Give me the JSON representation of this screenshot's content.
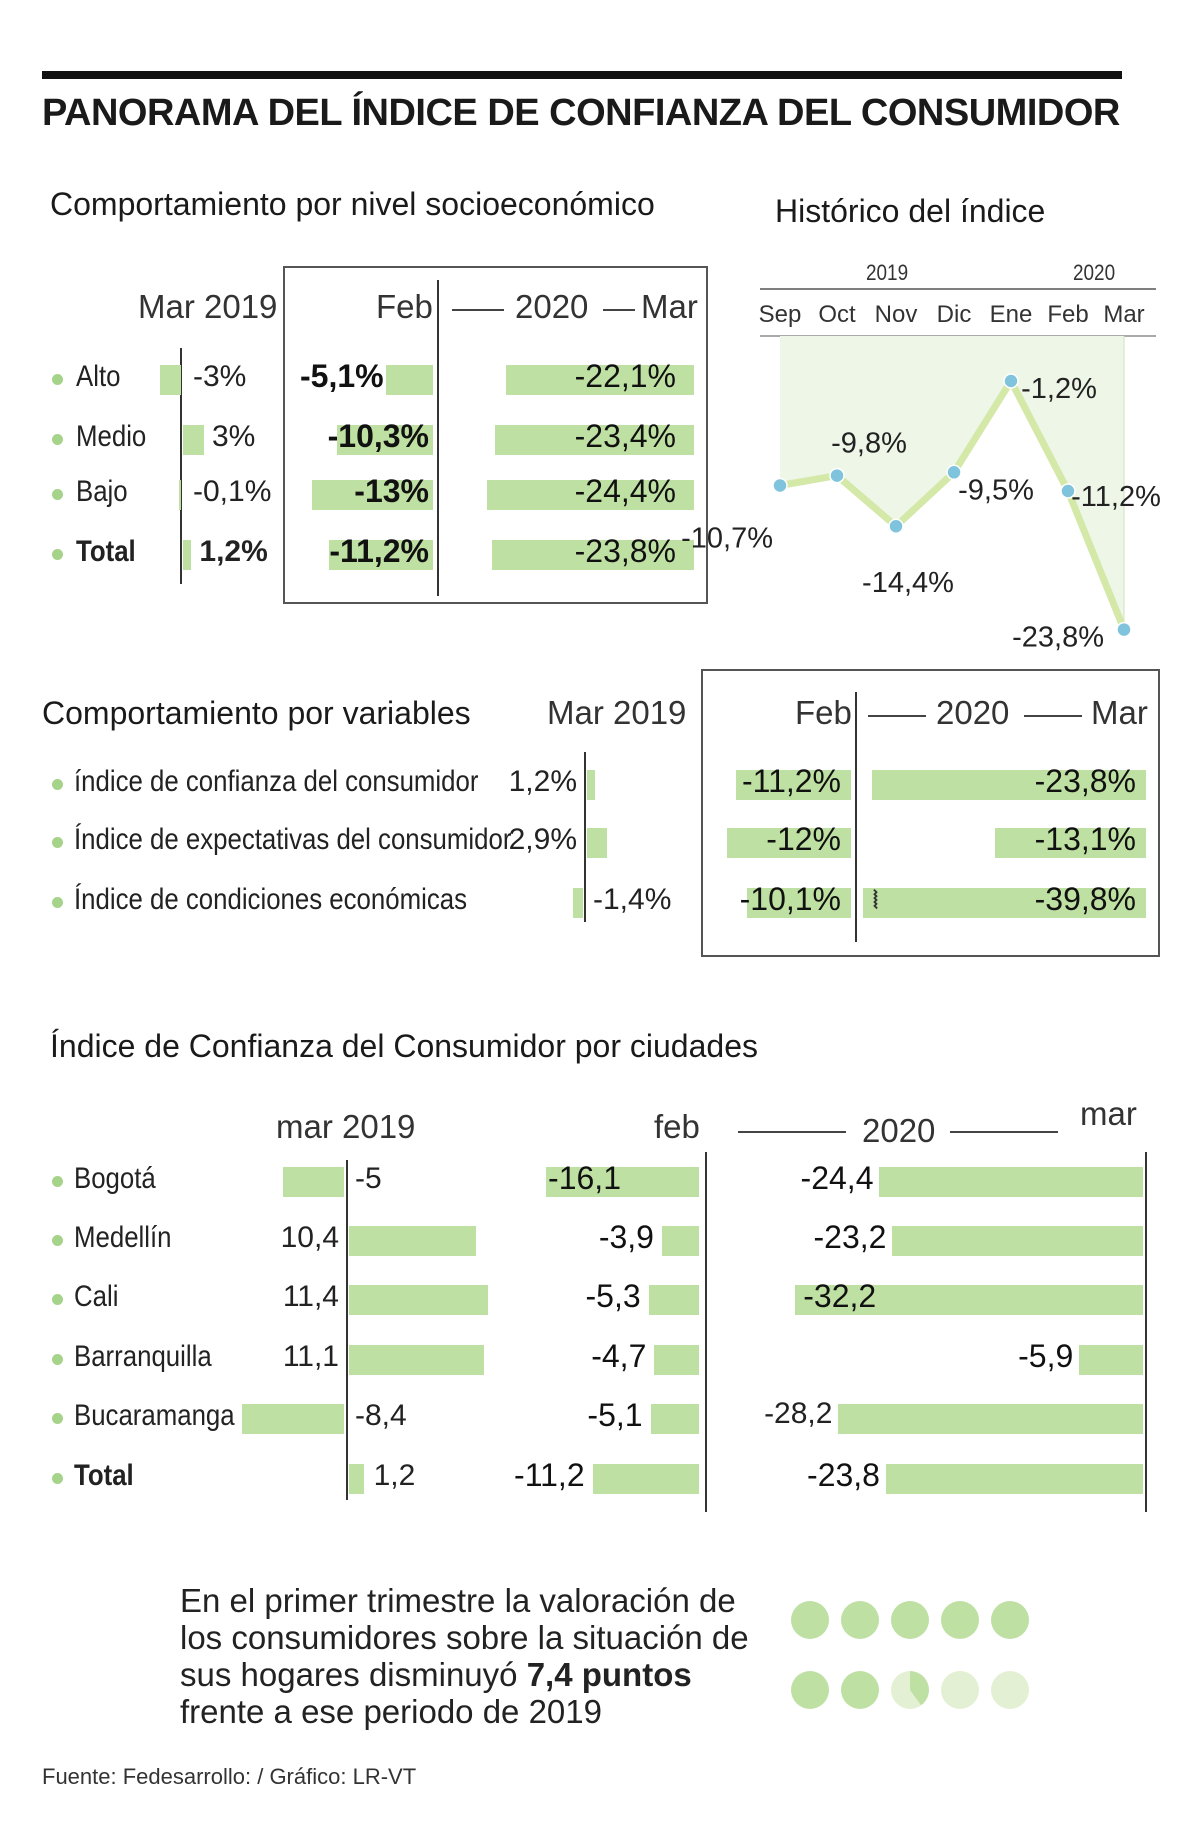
{
  "title": "PANORAMA DEL ÍNDICE DE CONFIANZA DEL CONSUMIDOR",
  "colors": {
    "bar": "#bfe0a3",
    "line": "#d4e8a8",
    "point": "#7fc4dc",
    "area": "#eef6e8",
    "dot_light": "#e3f0d3"
  },
  "socio": {
    "title": "Comportamiento por nivel socioeconómico",
    "headers": {
      "mar2019": "Mar 2019",
      "feb": "Feb",
      "year": "2020",
      "mar": "Mar"
    },
    "rows": [
      {
        "label": "Alto",
        "mar2019": "-3%",
        "feb": "-5,1%",
        "mar": "-22,1%",
        "v2019": -3,
        "vfeb": -5.1,
        "vmar": -22.1
      },
      {
        "label": "Medio",
        "mar2019": "3%",
        "feb": "-10,3%",
        "mar": "-23,4%",
        "v2019": 3,
        "vfeb": -10.3,
        "vmar": -23.4
      },
      {
        "label": "Bajo",
        "mar2019": "-0,1%",
        "feb": "-13%",
        "mar": "-24,4%",
        "v2019": -0.1,
        "vfeb": -13,
        "vmar": -24.4
      },
      {
        "label": "Total",
        "mar2019": "1,2%",
        "feb": "-11,2%",
        "mar": "-23,8%",
        "v2019": 1.2,
        "vfeb": -11.2,
        "vmar": -23.8
      }
    ]
  },
  "chart_data": {
    "type": "line",
    "title": "Histórico del índice",
    "year_labels": [
      "2019",
      "2020"
    ],
    "x": [
      "Sep",
      "Oct",
      "Nov",
      "Dic",
      "Ene",
      "Feb",
      "Mar"
    ],
    "values": [
      -10.7,
      -9.8,
      -14.4,
      -9.5,
      -1.2,
      -11.2,
      -23.8
    ],
    "labels": [
      "-10,7%",
      "-9,8%",
      "-14,4%",
      "-9,5%",
      "-1,2%",
      "-11,2%",
      "-23,8%"
    ],
    "ylim": [
      -24,
      0
    ]
  },
  "variables": {
    "title": "Comportamiento por variables",
    "headers": {
      "mar2019": "Mar 2019",
      "feb": "Feb",
      "year": "2020",
      "mar": "Mar"
    },
    "rows": [
      {
        "label": "índice de confianza del consumidor",
        "mar2019": "1,2%",
        "feb": "-11,2%",
        "mar": "-23,8%",
        "v2019": 1.2,
        "vfeb": -11.2,
        "vmar": -23.8
      },
      {
        "label": "Índice de expectativas del consumidor",
        "mar2019": "2,9%",
        "feb": "-12%",
        "mar": "-13,1%",
        "v2019": 2.9,
        "vfeb": -12,
        "vmar": -13.1
      },
      {
        "label": "Índice de condiciones económicas",
        "mar2019": "-1,4%",
        "feb": "-10,1%",
        "mar": "-39,8%",
        "v2019": -1.4,
        "vfeb": -10.1,
        "vmar": -39.8
      }
    ]
  },
  "cities": {
    "title": "Índice de Confianza del Consumidor por ciudades",
    "headers": {
      "mar2019": "mar 2019",
      "feb": "feb",
      "year": "2020",
      "mar": "mar"
    },
    "rows": [
      {
        "label": "Bogotá",
        "mar2019": "-5",
        "feb": "-16,1",
        "mar": "-24,4",
        "v2019": -5,
        "vfeb": -16.1,
        "vmar": -24.4
      },
      {
        "label": "Medellín",
        "mar2019": "10,4",
        "feb": "-3,9",
        "mar": "-23,2",
        "v2019": 10.4,
        "vfeb": -3.9,
        "vmar": -23.2
      },
      {
        "label": "Cali",
        "mar2019": "11,4",
        "feb": "-5,3",
        "mar": "-32,2",
        "v2019": 11.4,
        "vfeb": -5.3,
        "vmar": -32.2
      },
      {
        "label": "Barranquilla",
        "mar2019": "11,1",
        "feb": "-4,7",
        "mar": "-5,9",
        "v2019": 11.1,
        "vfeb": -4.7,
        "vmar": -5.9
      },
      {
        "label": "Bucaramanga",
        "mar2019": "-8,4",
        "feb": "-5,1",
        "mar": "-28,2",
        "v2019": -8.4,
        "vfeb": -5.1,
        "vmar": -28.2
      },
      {
        "label": "Total",
        "mar2019": "1,2",
        "feb": "-11,2",
        "mar": "-23,8",
        "v2019": 1.2,
        "vfeb": -11.2,
        "vmar": -23.8
      }
    ]
  },
  "note": {
    "text_before": "En el primer trimestre la valoración de los consumidores sobre la situación de sus hogares disminuyó ",
    "highlight": "7,4 puntos",
    "text_after": " frente a ese periodo de 2019",
    "points_value": 7.4,
    "points_total": 10
  },
  "source": "Fuente: Fedesarrollo: / Gráfico: LR-VT"
}
